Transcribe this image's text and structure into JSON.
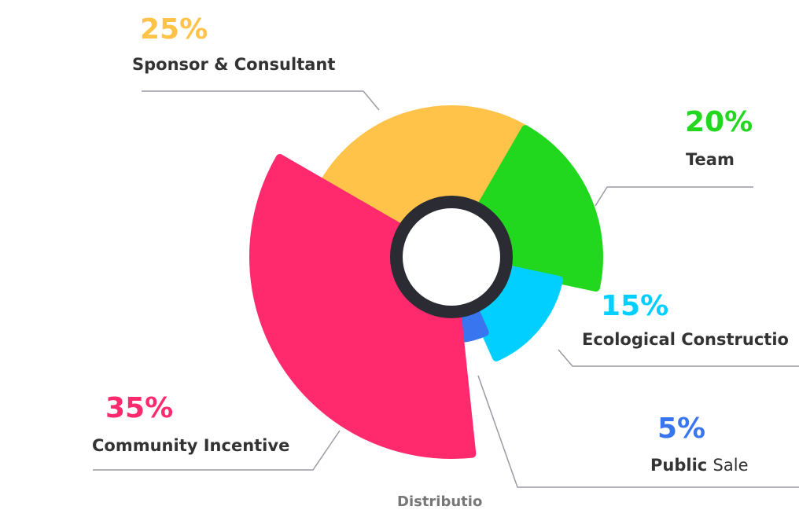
{
  "chart_data": {
    "type": "pie",
    "variant": "polar-area-donut",
    "slices": [
      {
        "label": "Sponsor & Consultant",
        "value": 25,
        "display": "25%",
        "color": "#FFC34A"
      },
      {
        "label": "Team",
        "value": 20,
        "display": "20%",
        "color": "#22D81F"
      },
      {
        "label": "Ecological Constructio",
        "value": 15,
        "display": "15%",
        "color": "#00CFFF"
      },
      {
        "label_parts": [
          "Public",
          "Sale"
        ],
        "label": "Public Sale",
        "value": 5,
        "display": "5%",
        "color": "#3A75F0"
      },
      {
        "label": "Community Incentive",
        "value": 35,
        "display": "35%",
        "color": "#FF2A6E"
      }
    ],
    "center_ring_color": "#2B2B33"
  },
  "footer_cut_text": "Distributio"
}
